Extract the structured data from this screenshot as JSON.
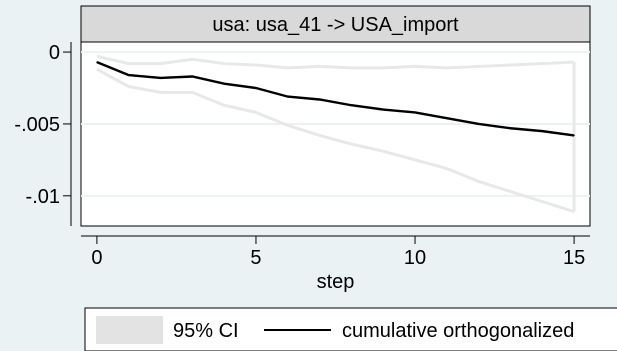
{
  "chart_data": {
    "type": "line",
    "facet_label": "usa: usa_41 -> USA_import",
    "xlabel": "step",
    "ylabel": "",
    "x_ticks": [
      0,
      5,
      10,
      15
    ],
    "y_ticks": [
      0,
      -0.005,
      -0.01
    ],
    "y_tick_labels": [
      "0",
      "-.005",
      "-.01"
    ],
    "xlim": [
      -0.5,
      15.5
    ],
    "ylim": [
      -0.0121,
      0.0007
    ],
    "grid": true,
    "x": [
      0,
      1,
      2,
      3,
      4,
      5,
      6,
      7,
      8,
      9,
      10,
      11,
      12,
      13,
      14,
      15
    ],
    "series": [
      {
        "name": "cumulative orthogonalized",
        "kind": "line",
        "values": [
          -0.0007,
          -0.0016,
          -0.0018,
          -0.0017,
          -0.0022,
          -0.0025,
          -0.0031,
          -0.0033,
          -0.0037,
          -0.004,
          -0.0042,
          -0.0046,
          -0.005,
          -0.0053,
          -0.0055,
          -0.0058
        ]
      }
    ],
    "ci": {
      "name": "95% CI",
      "upper": [
        -0.0003,
        -0.0008,
        -0.0008,
        -0.0005,
        -0.0008,
        -0.0009,
        -0.0011,
        -0.001,
        -0.0011,
        -0.0011,
        -0.001,
        -0.0011,
        -0.001,
        -0.0009,
        -0.0008,
        -0.0007
      ],
      "lower": [
        -0.0012,
        -0.0024,
        -0.0028,
        -0.0028,
        -0.0037,
        -0.0042,
        -0.0051,
        -0.0058,
        -0.0064,
        -0.0069,
        -0.0075,
        -0.0081,
        -0.009,
        -0.0097,
        -0.0104,
        -0.0111
      ]
    },
    "legend": {
      "position": "bottom",
      "entries": [
        "95% CI",
        "cumulative orthogonalized"
      ]
    }
  },
  "colors": {
    "background": "#eaf2f3",
    "plot_background": "#ffffff",
    "facet_header": "#d9d9d9",
    "ci_line": "#e8e8e8",
    "ci_swatch": "#e3e3e3",
    "main_line": "#000000",
    "grid": "#eaf2f3"
  }
}
